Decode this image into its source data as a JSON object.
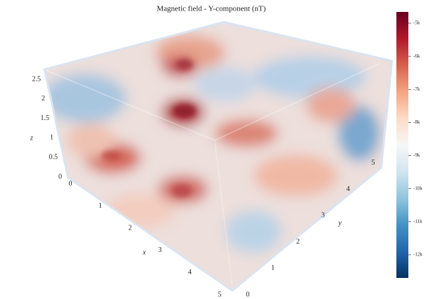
{
  "chart_data": {
    "type": "volume",
    "title": "Magnetic field - Y-component (nT)",
    "x_label": "x",
    "y_label": "y",
    "z_label": "z",
    "xlim": [
      0,
      5
    ],
    "xticks": [
      0,
      1,
      2,
      3,
      4,
      5
    ],
    "ylim": [
      0,
      5
    ],
    "yticks": [
      0,
      1,
      2,
      3,
      4,
      5
    ],
    "zlim": [
      0,
      2.5
    ],
    "zticks": [
      0,
      0.5,
      1,
      1.5,
      2,
      2.5
    ],
    "clim": [
      -12700,
      -4660
    ],
    "cticks": [
      {
        "value": -5000,
        "label": "-5k"
      },
      {
        "value": -6000,
        "label": "-6k"
      },
      {
        "value": -7000,
        "label": "-7k"
      },
      {
        "value": -8000,
        "label": "-8k"
      },
      {
        "value": -9000,
        "label": "-9k"
      },
      {
        "value": -10000,
        "label": "-10k"
      },
      {
        "value": -11000,
        "label": "-11k"
      },
      {
        "value": -12000,
        "label": "-12k"
      }
    ],
    "colorscale": [
      "#053061",
      "#2166ac",
      "#4393c3",
      "#92c5de",
      "#d1e5f0",
      "#f7f7f7",
      "#fddbc7",
      "#f4a582",
      "#d6604d",
      "#b2182b",
      "#67001f"
    ]
  }
}
